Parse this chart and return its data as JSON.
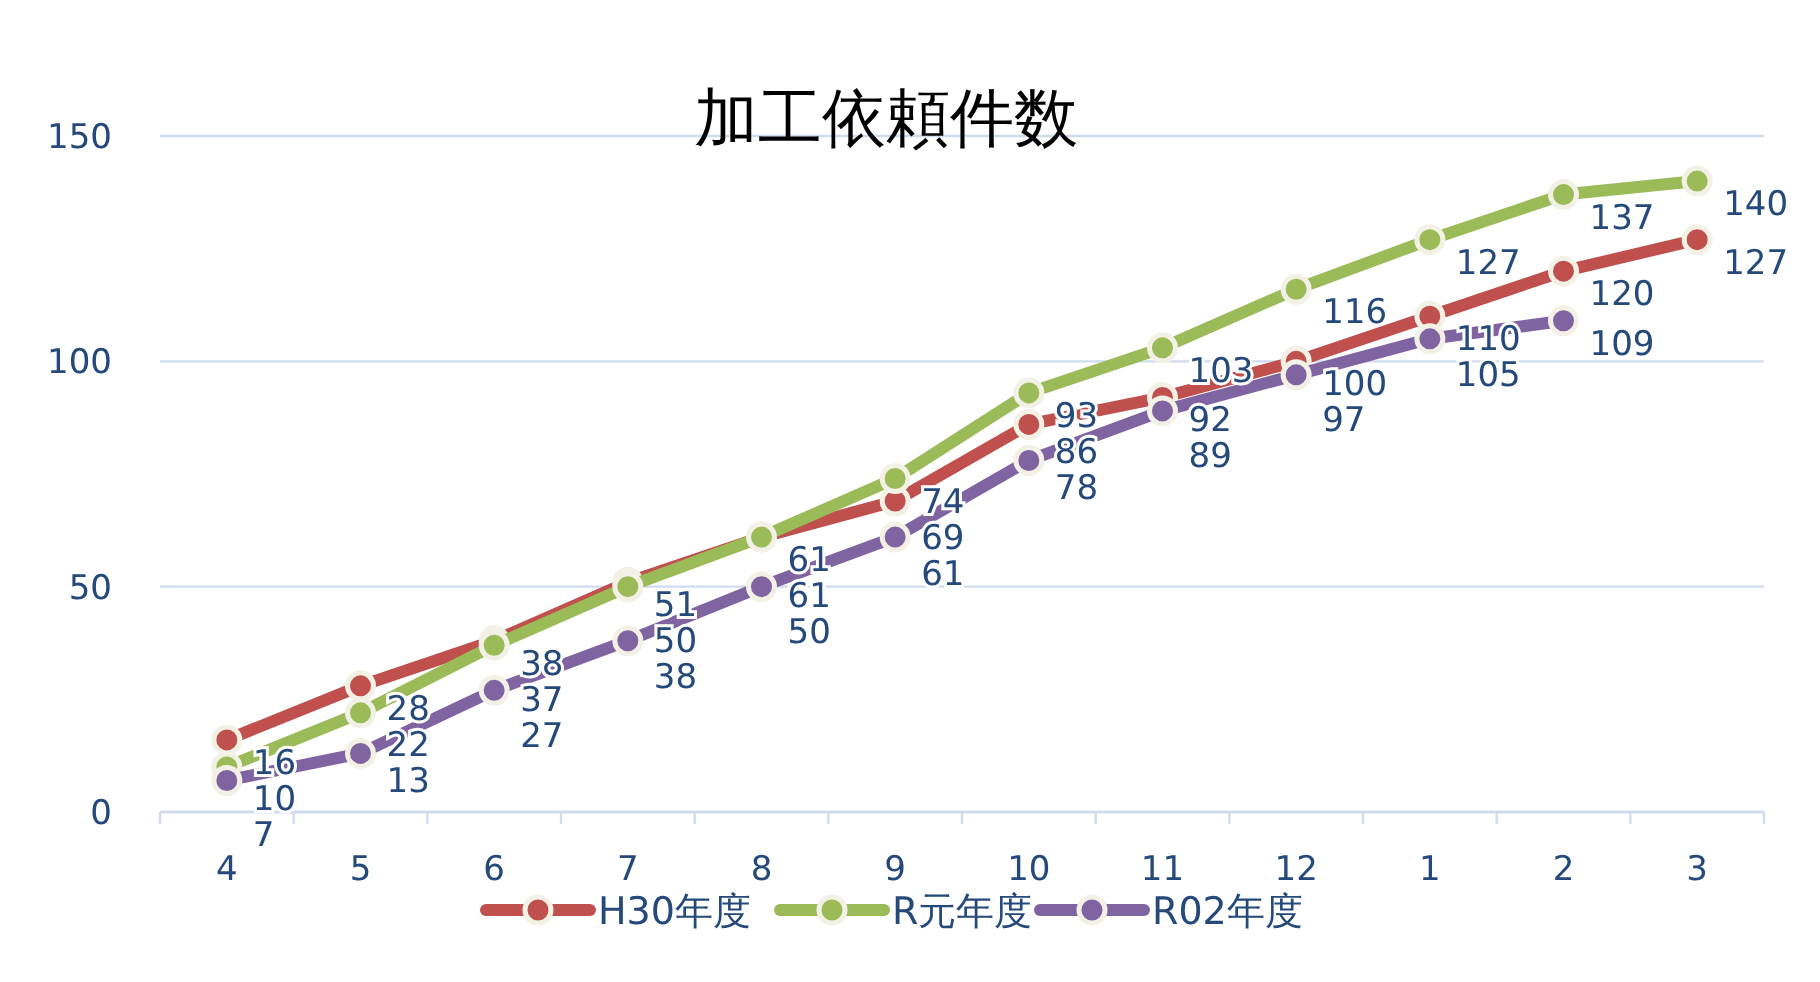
{
  "chart_data": {
    "type": "line",
    "title": "加工依頼件数",
    "categories": [
      "4",
      "5",
      "6",
      "7",
      "8",
      "9",
      "10",
      "11",
      "12",
      "1",
      "2",
      "3"
    ],
    "series": [
      {
        "name": "H30年度",
        "color": "#c0504d",
        "values": [
          16,
          28,
          38,
          51,
          61,
          69,
          86,
          92,
          100,
          110,
          120,
          127
        ]
      },
      {
        "name": "R元年度",
        "color": "#9bbb59",
        "values": [
          10,
          22,
          37,
          50,
          61,
          74,
          93,
          103,
          116,
          127,
          137,
          140
        ]
      },
      {
        "name": "R02年度",
        "color": "#8064a2",
        "values": [
          7,
          13,
          27,
          38,
          50,
          61,
          78,
          89,
          97,
          105,
          109,
          null
        ]
      }
    ],
    "ylim": [
      0,
      150
    ],
    "yticks": [
      0,
      50,
      100,
      150
    ],
    "grid": "y",
    "legend": "bottom",
    "marker": "circle",
    "line_style": "solid",
    "data_labels": true
  }
}
